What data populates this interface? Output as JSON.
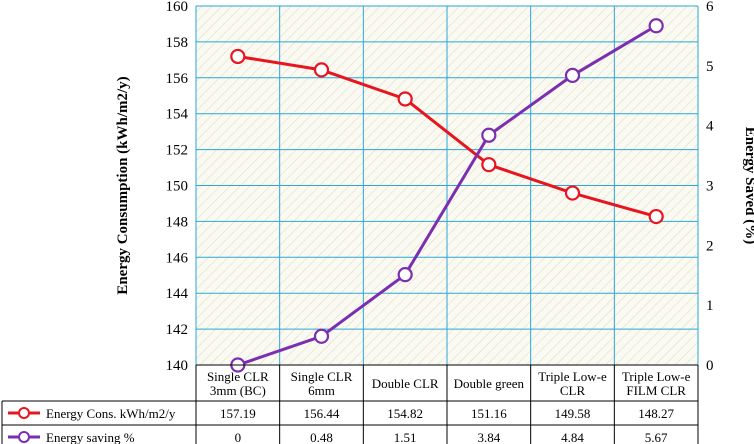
{
  "chart_data": {
    "type": "line",
    "categories": [
      [
        "Single CLR",
        "3mm (BC)"
      ],
      [
        "Single CLR",
        "6mm"
      ],
      [
        "Double CLR"
      ],
      [
        "Double green"
      ],
      [
        "Triple Low-e",
        "CLR"
      ],
      [
        "Triple Low-e",
        "FILM CLR"
      ]
    ],
    "y_left": {
      "label": "Energy Consumption (kWh/m2/y)",
      "min": 140,
      "max": 160,
      "step": 2
    },
    "y_right": {
      "label": "Energy Saved (%)",
      "min": 0,
      "max": 6,
      "step": 1
    },
    "grid": true,
    "series": [
      {
        "name": "Energy Cons. kWh/m2/y",
        "axis": "left",
        "color": "#e8141e",
        "values": [
          157.19,
          156.44,
          154.82,
          151.16,
          149.58,
          148.27
        ],
        "labels": [
          "157.19",
          "156.44",
          "154.82",
          "151.16",
          "149.58",
          "148.27"
        ]
      },
      {
        "name": "Energy saving %",
        "axis": "right",
        "color": "#7b2fb0",
        "values": [
          0,
          0.48,
          1.51,
          3.84,
          4.84,
          5.67
        ],
        "labels": [
          "0",
          "0.48",
          "1.51",
          "3.84",
          "4.84",
          "5.67"
        ]
      }
    ],
    "data_table": true
  },
  "colors": {
    "grid": "#29a7d9",
    "plot_bg": "#fafaf2",
    "hatch": "#dcdcc8"
  }
}
